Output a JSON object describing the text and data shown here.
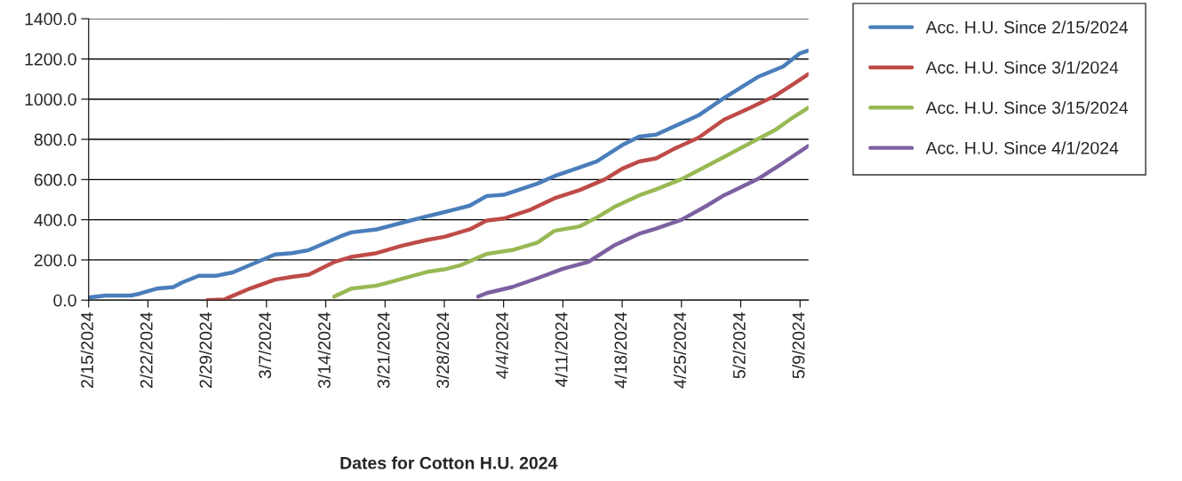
{
  "chart_data": {
    "type": "line",
    "xlabel": "Dates for Cotton H.U. 2024",
    "xlim": [
      "2024-02-15",
      "2024-05-10"
    ],
    "xticks": [
      {
        "value": "2024-02-15",
        "label": "2/15/2024"
      },
      {
        "value": "2024-02-22",
        "label": "2/22/2024"
      },
      {
        "value": "2024-02-29",
        "label": "2/29/2024"
      },
      {
        "value": "2024-03-07",
        "label": "3/7/2024"
      },
      {
        "value": "2024-03-14",
        "label": "3/14/2024"
      },
      {
        "value": "2024-03-21",
        "label": "3/21/2024"
      },
      {
        "value": "2024-03-28",
        "label": "3/28/2024"
      },
      {
        "value": "2024-04-04",
        "label": "4/4/2024"
      },
      {
        "value": "2024-04-11",
        "label": "4/11/2024"
      },
      {
        "value": "2024-04-18",
        "label": "4/18/2024"
      },
      {
        "value": "2024-04-25",
        "label": "4/25/2024"
      },
      {
        "value": "2024-05-02",
        "label": "5/2/2024"
      },
      {
        "value": "2024-05-09",
        "label": "5/9/2024"
      }
    ],
    "ylim": [
      0,
      1400
    ],
    "yticks": [
      {
        "value": 0,
        "label": "0.0"
      },
      {
        "value": 200,
        "label": "200.0"
      },
      {
        "value": 400,
        "label": "400.0"
      },
      {
        "value": 600,
        "label": "600.0"
      },
      {
        "value": 800,
        "label": "800.0"
      },
      {
        "value": 1000,
        "label": "1000.0"
      },
      {
        "value": 1200,
        "label": "1200.0"
      },
      {
        "value": 1400,
        "label": "1400.0"
      }
    ],
    "grid": "y",
    "legend": "right",
    "marker": "none",
    "line_style": "solid",
    "series": [
      {
        "name": "Acc. H.U. Since 2/15/2024",
        "color": "#4a7ebb",
        "x": [
          "2024-02-15",
          "2024-02-17",
          "2024-02-20",
          "2024-02-21",
          "2024-02-23",
          "2024-02-25",
          "2024-02-26",
          "2024-02-28",
          "2024-03-01",
          "2024-03-03",
          "2024-03-08",
          "2024-03-10",
          "2024-03-12",
          "2024-03-16",
          "2024-03-17",
          "2024-03-20",
          "2024-03-24",
          "2024-03-26",
          "2024-03-28",
          "2024-03-31",
          "2024-04-02",
          "2024-04-04",
          "2024-04-08",
          "2024-04-10",
          "2024-04-12",
          "2024-04-15",
          "2024-04-18",
          "2024-04-20",
          "2024-04-22",
          "2024-04-27",
          "2024-04-30",
          "2024-05-04",
          "2024-05-07",
          "2024-05-09",
          "2024-05-10"
        ],
        "values": [
          13,
          23,
          23,
          32,
          57,
          65,
          87,
          121,
          121,
          138,
          227,
          234,
          249,
          322,
          337,
          352,
          396,
          418,
          438,
          470,
          518,
          524,
          580,
          617,
          646,
          690,
          771,
          813,
          823,
          919,
          1005,
          1110,
          1162,
          1228,
          1242
        ]
      },
      {
        "name": "Acc. H.U. Since 3/1/2024",
        "color": "#be4b48",
        "x": [
          "2024-02-29",
          "2024-03-02",
          "2024-03-05",
          "2024-03-08",
          "2024-03-10",
          "2024-03-12",
          "2024-03-15",
          "2024-03-17",
          "2024-03-20",
          "2024-03-23",
          "2024-03-26",
          "2024-03-28",
          "2024-03-31",
          "2024-04-02",
          "2024-04-04",
          "2024-04-07",
          "2024-04-10",
          "2024-04-13",
          "2024-04-16",
          "2024-04-18",
          "2024-04-20",
          "2024-04-22",
          "2024-04-24",
          "2024-04-27",
          "2024-04-30",
          "2024-05-03",
          "2024-05-06",
          "2024-05-08",
          "2024-05-10"
        ],
        "values": [
          0,
          3,
          57,
          102,
          116,
          127,
          190,
          215,
          234,
          271,
          300,
          315,
          352,
          396,
          406,
          447,
          507,
          548,
          602,
          654,
          690,
          705,
          750,
          808,
          897,
          955,
          1015,
          1069,
          1125
        ]
      },
      {
        "name": "Acc. H.U. Since 3/15/2024",
        "color": "#98b954",
        "x": [
          "2024-03-15",
          "2024-03-17",
          "2024-03-20",
          "2024-03-22",
          "2024-03-23",
          "2024-03-26",
          "2024-03-28",
          "2024-03-30",
          "2024-04-02",
          "2024-04-05",
          "2024-04-08",
          "2024-04-10",
          "2024-04-13",
          "2024-04-15",
          "2024-04-17",
          "2024-04-20",
          "2024-04-22",
          "2024-04-25",
          "2024-04-28",
          "2024-04-30",
          "2024-05-03",
          "2024-05-06",
          "2024-05-08",
          "2024-05-10"
        ],
        "values": [
          18,
          57,
          72,
          94,
          106,
          141,
          153,
          175,
          230,
          249,
          286,
          345,
          367,
          411,
          462,
          521,
          551,
          602,
          668,
          712,
          779,
          845,
          904,
          958
        ]
      },
      {
        "name": "Acc. H.U. Since 4/1/2024",
        "color": "#7d60a0",
        "x": [
          "2024-04-01",
          "2024-04-02",
          "2024-04-05",
          "2024-04-08",
          "2024-04-11",
          "2024-04-14",
          "2024-04-17",
          "2024-04-20",
          "2024-04-22",
          "2024-04-25",
          "2024-04-28",
          "2024-04-30",
          "2024-05-04",
          "2024-05-07",
          "2024-05-10"
        ],
        "values": [
          18,
          35,
          65,
          109,
          156,
          190,
          271,
          330,
          356,
          400,
          470,
          521,
          602,
          683,
          768
        ]
      }
    ]
  }
}
